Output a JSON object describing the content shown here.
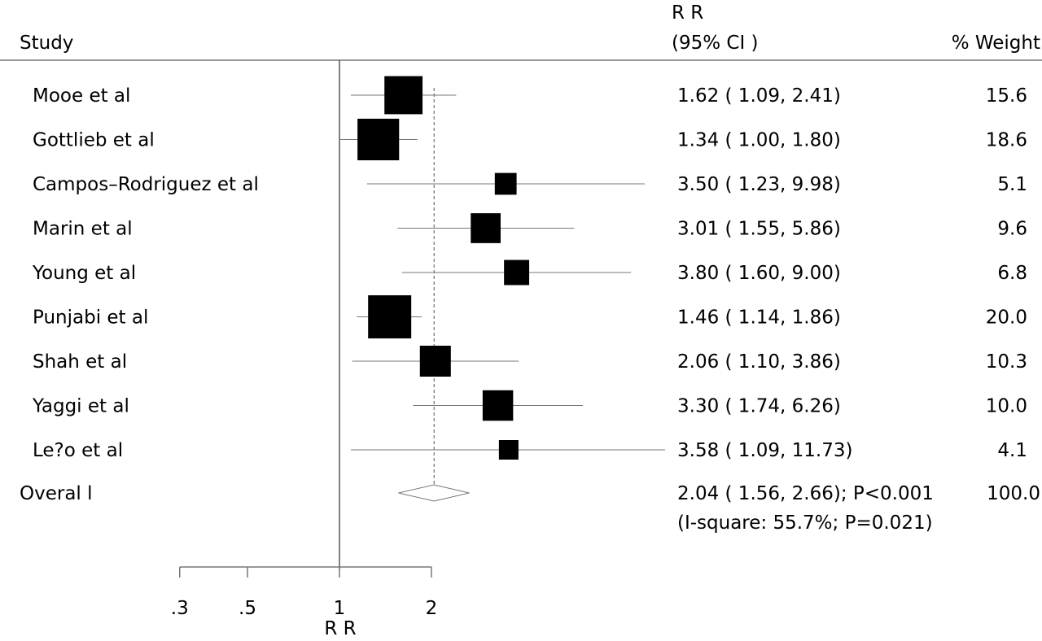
{
  "chart_data": {
    "type": "forest",
    "header": {
      "study": "Study",
      "rr_line1": "R R",
      "rr_line2": "(95% CI )",
      "weight": "% Weight"
    },
    "studies": [
      {
        "name": "Mooe et al",
        "rr": 1.62,
        "lo": 1.09,
        "hi": 2.41,
        "label": "1.62 ( 1.09, 2.41)",
        "weight": 15.6,
        "weight_label": "15.6"
      },
      {
        "name": "Gottlieb et al",
        "rr": 1.34,
        "lo": 1.0,
        "hi": 1.8,
        "label": "1.34 ( 1.00, 1.80)",
        "weight": 18.6,
        "weight_label": "18.6"
      },
      {
        "name": "Campos–Rodriguez et al",
        "rr": 3.5,
        "lo": 1.23,
        "hi": 9.98,
        "label": "3.50 ( 1.23, 9.98)",
        "weight": 5.1,
        "weight_label": "5.1"
      },
      {
        "name": "Marin et al",
        "rr": 3.01,
        "lo": 1.55,
        "hi": 5.86,
        "label": "3.01 ( 1.55, 5.86)",
        "weight": 9.6,
        "weight_label": "9.6"
      },
      {
        "name": "Young et al",
        "rr": 3.8,
        "lo": 1.6,
        "hi": 9.0,
        "label": "3.80 ( 1.60, 9.00)",
        "weight": 6.8,
        "weight_label": "6.8"
      },
      {
        "name": "Punjabi et al",
        "rr": 1.46,
        "lo": 1.14,
        "hi": 1.86,
        "label": "1.46 ( 1.14, 1.86)",
        "weight": 20.0,
        "weight_label": "20.0"
      },
      {
        "name": "Shah et al",
        "rr": 2.06,
        "lo": 1.1,
        "hi": 3.86,
        "label": "2.06 ( 1.10, 3.86)",
        "weight": 10.3,
        "weight_label": "10.3"
      },
      {
        "name": "Yaggi et al",
        "rr": 3.3,
        "lo": 1.74,
        "hi": 6.26,
        "label": "3.30 ( 1.74, 6.26)",
        "weight": 10.0,
        "weight_label": "10.0"
      },
      {
        "name": "Le?o et al",
        "rr": 3.58,
        "lo": 1.09,
        "hi": 11.73,
        "label": "3.58 ( 1.09, 11.73)",
        "weight": 4.1,
        "weight_label": "4.1"
      }
    ],
    "overall": {
      "name": "Overal l",
      "rr": 2.04,
      "lo": 1.56,
      "hi": 2.66,
      "label": "2.04 ( 1.56, 2.66); P<0.001",
      "heterogeneity": "(I-square: 55.7%; P=0.021)",
      "weight_label": "100.0"
    },
    "x_axis": {
      "label": "R R",
      "scale": "log",
      "ticks": [
        {
          "value": 0.3,
          "label": ".3"
        },
        {
          "value": 0.5,
          "label": ".5"
        },
        {
          "value": 1,
          "label": "1"
        },
        {
          "value": 2,
          "label": "2"
        }
      ],
      "null_line": 1,
      "pooled_reference": 2.04
    }
  }
}
